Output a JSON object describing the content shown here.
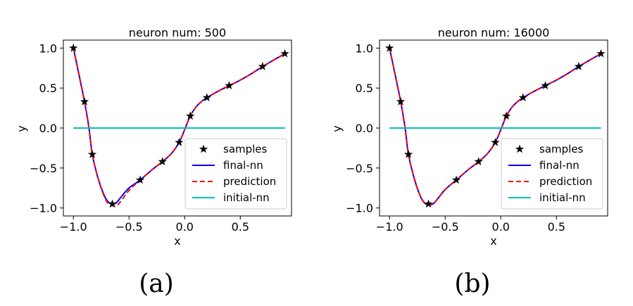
{
  "chart_data": [
    {
      "type": "line",
      "title": "neuron num: 500",
      "xlabel": "x",
      "ylabel": "y",
      "xlim": [
        -1.09,
        0.96
      ],
      "ylim": [
        -1.1,
        1.1
      ],
      "xticks": [
        -1.0,
        -0.5,
        0.0,
        0.5
      ],
      "xtick_labels": [
        "−1.0",
        "−0.5",
        "0.0",
        "0.5"
      ],
      "yticks": [
        1.0,
        0.5,
        0.0,
        -0.5,
        -1.0
      ],
      "ytick_labels": [
        "1.0",
        "0.5",
        "0.0",
        "−0.5",
        "−1.0"
      ],
      "legend_position": "lower-right",
      "caption": "(a)",
      "series": [
        {
          "name": "samples",
          "kind": "scatter",
          "color": "#000000",
          "marker": "star",
          "x": [
            -1.0,
            -0.9,
            -0.83,
            -0.65,
            -0.4,
            -0.2,
            -0.05,
            0.05,
            0.2,
            0.4,
            0.7,
            0.9
          ],
          "y": [
            1.0,
            0.33,
            -0.33,
            -0.95,
            -0.65,
            -0.42,
            -0.18,
            0.15,
            0.38,
            0.53,
            0.77,
            0.93
          ]
        },
        {
          "name": "final-nn",
          "kind": "line",
          "color": "#0000ff",
          "dash": "solid",
          "x": [
            -1.0,
            -0.95,
            -0.9,
            -0.86,
            -0.83,
            -0.78,
            -0.73,
            -0.69,
            -0.65,
            -0.61,
            -0.57,
            -0.5,
            -0.4,
            -0.3,
            -0.2,
            -0.12,
            -0.05,
            0.0,
            0.05,
            0.1,
            0.15,
            0.2,
            0.3,
            0.4,
            0.5,
            0.6,
            0.7,
            0.8,
            0.9
          ],
          "y": [
            1.0,
            0.67,
            0.33,
            0.0,
            -0.33,
            -0.62,
            -0.82,
            -0.92,
            -0.95,
            -0.93,
            -0.86,
            -0.75,
            -0.65,
            -0.53,
            -0.42,
            -0.32,
            -0.18,
            -0.02,
            0.15,
            0.26,
            0.33,
            0.38,
            0.46,
            0.53,
            0.6,
            0.68,
            0.77,
            0.85,
            0.93
          ]
        },
        {
          "name": "prediction",
          "kind": "line",
          "color": "#ff0000",
          "dash": "dashed",
          "x": [
            -1.0,
            -0.95,
            -0.9,
            -0.86,
            -0.83,
            -0.78,
            -0.73,
            -0.69,
            -0.65,
            -0.61,
            -0.57,
            -0.5,
            -0.4,
            -0.3,
            -0.2,
            -0.12,
            -0.05,
            0.0,
            0.05,
            0.1,
            0.15,
            0.2,
            0.3,
            0.4,
            0.5,
            0.6,
            0.7,
            0.8,
            0.9
          ],
          "y": [
            1.0,
            0.67,
            0.33,
            0.0,
            -0.33,
            -0.62,
            -0.83,
            -0.94,
            -0.97,
            -0.97,
            -0.91,
            -0.78,
            -0.65,
            -0.53,
            -0.42,
            -0.32,
            -0.18,
            -0.02,
            0.15,
            0.26,
            0.33,
            0.38,
            0.46,
            0.53,
            0.6,
            0.68,
            0.77,
            0.85,
            0.93
          ]
        },
        {
          "name": "initial-nn",
          "kind": "line",
          "color": "#00bfbf",
          "dash": "solid",
          "x": [
            -1.0,
            0.9
          ],
          "y": [
            0.0,
            0.0
          ]
        }
      ]
    },
    {
      "type": "line",
      "title": "neuron num: 16000",
      "xlabel": "x",
      "ylabel": "y",
      "xlim": [
        -1.09,
        0.96
      ],
      "ylim": [
        -1.1,
        1.1
      ],
      "xticks": [
        -1.0,
        -0.5,
        0.0,
        0.5
      ],
      "xtick_labels": [
        "−1.0",
        "−0.5",
        "0.0",
        "0.5"
      ],
      "yticks": [
        1.0,
        0.5,
        0.0,
        -0.5,
        -1.0
      ],
      "ytick_labels": [
        "1.0",
        "0.5",
        "0.0",
        "−0.5",
        "−1.0"
      ],
      "legend_position": "lower-right",
      "caption": "(b)",
      "series": [
        {
          "name": "samples",
          "kind": "scatter",
          "color": "#000000",
          "marker": "star",
          "x": [
            -1.0,
            -0.9,
            -0.83,
            -0.65,
            -0.4,
            -0.2,
            -0.05,
            0.05,
            0.2,
            0.4,
            0.7,
            0.9
          ],
          "y": [
            1.0,
            0.33,
            -0.33,
            -0.95,
            -0.65,
            -0.42,
            -0.18,
            0.15,
            0.38,
            0.53,
            0.77,
            0.93
          ]
        },
        {
          "name": "final-nn",
          "kind": "line",
          "color": "#0000ff",
          "dash": "solid",
          "x": [
            -1.0,
            -0.95,
            -0.9,
            -0.86,
            -0.83,
            -0.78,
            -0.73,
            -0.69,
            -0.65,
            -0.61,
            -0.57,
            -0.5,
            -0.4,
            -0.3,
            -0.2,
            -0.12,
            -0.05,
            0.0,
            0.05,
            0.1,
            0.15,
            0.2,
            0.3,
            0.4,
            0.5,
            0.6,
            0.7,
            0.8,
            0.9
          ],
          "y": [
            1.0,
            0.67,
            0.33,
            0.0,
            -0.33,
            -0.62,
            -0.83,
            -0.93,
            -0.96,
            -0.95,
            -0.89,
            -0.77,
            -0.65,
            -0.53,
            -0.42,
            -0.32,
            -0.18,
            -0.02,
            0.15,
            0.26,
            0.33,
            0.38,
            0.46,
            0.53,
            0.6,
            0.68,
            0.77,
            0.85,
            0.93
          ]
        },
        {
          "name": "prediction",
          "kind": "line",
          "color": "#ff0000",
          "dash": "dashed",
          "x": [
            -1.0,
            -0.95,
            -0.9,
            -0.86,
            -0.83,
            -0.78,
            -0.73,
            -0.69,
            -0.65,
            -0.61,
            -0.57,
            -0.5,
            -0.4,
            -0.3,
            -0.2,
            -0.12,
            -0.05,
            0.0,
            0.05,
            0.1,
            0.15,
            0.2,
            0.3,
            0.4,
            0.5,
            0.6,
            0.7,
            0.8,
            0.9
          ],
          "y": [
            1.0,
            0.67,
            0.33,
            0.0,
            -0.33,
            -0.62,
            -0.83,
            -0.93,
            -0.96,
            -0.95,
            -0.89,
            -0.77,
            -0.65,
            -0.53,
            -0.42,
            -0.32,
            -0.18,
            -0.02,
            0.15,
            0.26,
            0.33,
            0.38,
            0.46,
            0.53,
            0.6,
            0.68,
            0.77,
            0.85,
            0.93
          ]
        },
        {
          "name": "initial-nn",
          "kind": "line",
          "color": "#00bfbf",
          "dash": "solid",
          "x": [
            -1.0,
            0.9
          ],
          "y": [
            0.0,
            0.0
          ]
        }
      ]
    }
  ]
}
